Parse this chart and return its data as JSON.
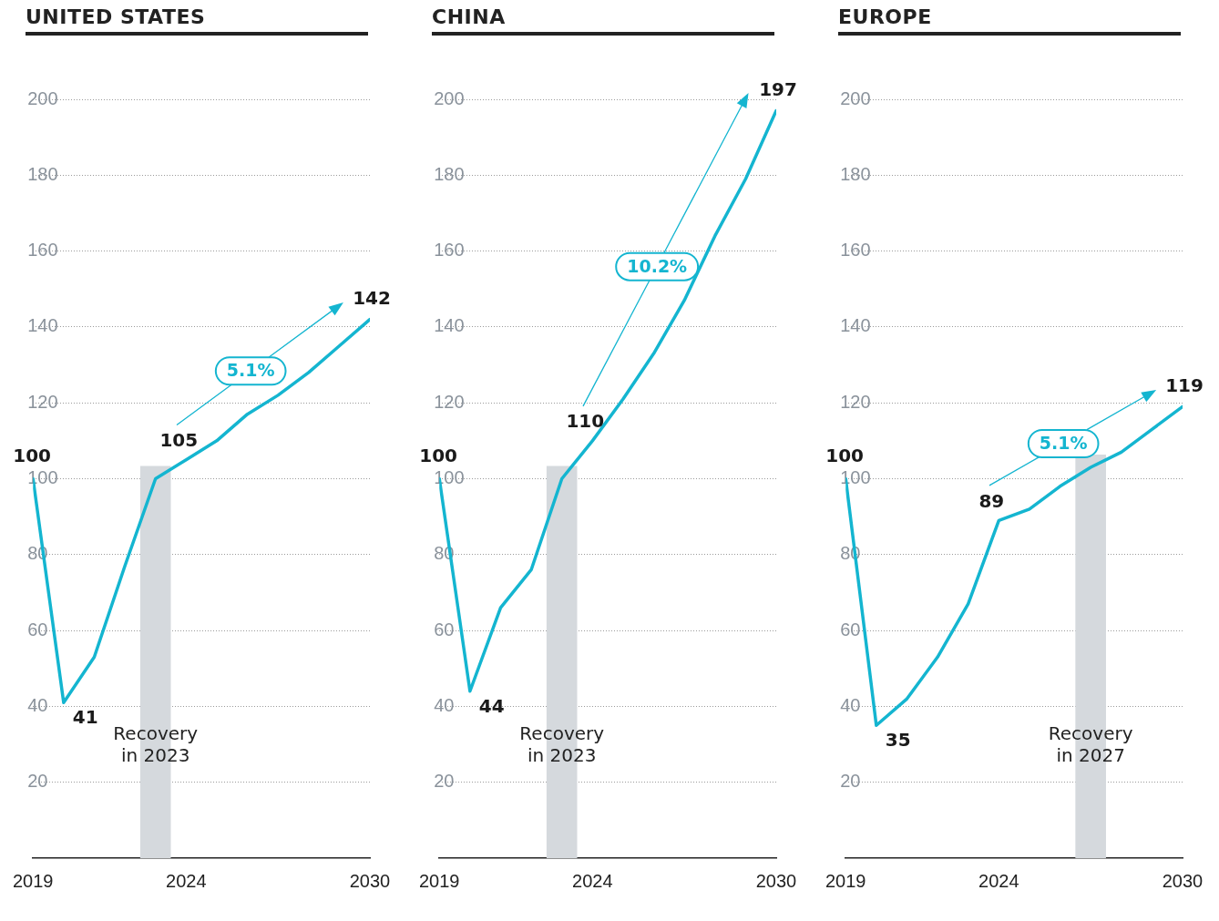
{
  "chart_data": [
    {
      "type": "line",
      "title": "UNITED STATES",
      "x": [
        2019,
        2020,
        2021,
        2022,
        2023,
        2024,
        2025,
        2026,
        2027,
        2028,
        2029,
        2030
      ],
      "series": [
        {
          "color": "#14b5d0",
          "values": [
            100,
            41,
            53,
            77,
            100,
            105,
            110,
            117,
            122,
            128,
            135,
            142
          ],
          "value_labels": [
            "100",
            "41",
            null,
            null,
            null,
            "105",
            null,
            null,
            null,
            null,
            null,
            "142"
          ]
        }
      ],
      "xlim": [
        2019,
        2030
      ],
      "xticks": [
        2019,
        2024,
        2030
      ],
      "ylim": [
        0,
        200
      ],
      "yticks": [
        20,
        40,
        60,
        80,
        100,
        120,
        140,
        160,
        180,
        200
      ],
      "grid": "y",
      "legend": false,
      "marker": "none",
      "line_style": "solid",
      "bands": [
        {
          "axis": "x",
          "from": 2022.5,
          "to": 2023.5,
          "label": "Recovery in 2023",
          "color": "#d5d9dd"
        }
      ],
      "annotations": [
        "5.1%"
      ]
    },
    {
      "type": "line",
      "title": "CHINA",
      "x": [
        2019,
        2020,
        2021,
        2022,
        2023,
        2024,
        2025,
        2026,
        2027,
        2028,
        2029,
        2030
      ],
      "series": [
        {
          "color": "#14b5d0",
          "values": [
            100,
            44,
            66,
            76,
            100,
            110,
            121,
            133,
            147,
            164,
            179,
            197
          ],
          "value_labels": [
            "100",
            "44",
            null,
            null,
            null,
            "110",
            null,
            null,
            null,
            null,
            null,
            "197"
          ]
        }
      ],
      "xlim": [
        2019,
        2030
      ],
      "xticks": [
        2019,
        2024,
        2030
      ],
      "ylim": [
        0,
        200
      ],
      "yticks": [
        20,
        40,
        60,
        80,
        100,
        120,
        140,
        160,
        180,
        200
      ],
      "grid": "y",
      "legend": false,
      "marker": "none",
      "line_style": "solid",
      "bands": [
        {
          "axis": "x",
          "from": 2022.5,
          "to": 2023.5,
          "label": "Recovery in 2023",
          "color": "#d5d9dd"
        }
      ],
      "annotations": [
        "10.2%"
      ]
    },
    {
      "type": "line",
      "title": "EUROPE",
      "x": [
        2019,
        2020,
        2021,
        2022,
        2023,
        2024,
        2025,
        2026,
        2027,
        2028,
        2029,
        2030
      ],
      "series": [
        {
          "color": "#14b5d0",
          "values": [
            100,
            35,
            42,
            53,
            67,
            89,
            92,
            98,
            103,
            107,
            113,
            119
          ],
          "value_labels": [
            "100",
            "35",
            null,
            null,
            null,
            "89",
            null,
            null,
            null,
            null,
            null,
            "119"
          ]
        }
      ],
      "xlim": [
        2019,
        2030
      ],
      "xticks": [
        2019,
        2024,
        2030
      ],
      "ylim": [
        0,
        200
      ],
      "yticks": [
        20,
        40,
        60,
        80,
        100,
        120,
        140,
        160,
        180,
        200
      ],
      "grid": "y",
      "legend": false,
      "marker": "none",
      "line_style": "solid",
      "bands": [
        {
          "axis": "x",
          "from": 2026.5,
          "to": 2027.5,
          "label": "Recovery in 2027",
          "color": "#d5d9dd"
        }
      ],
      "annotations": [
        "5.1%"
      ]
    }
  ]
}
